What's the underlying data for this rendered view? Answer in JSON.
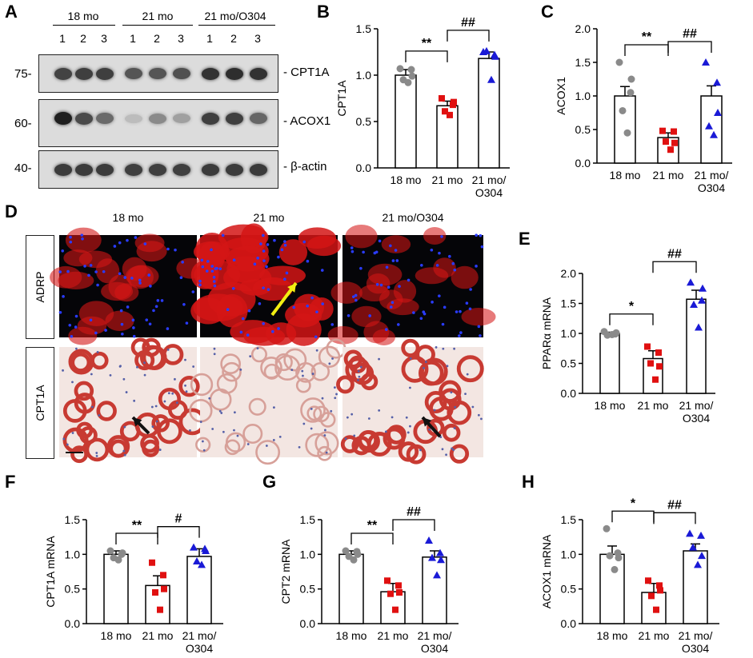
{
  "panel_letters": {
    "a": "A",
    "b": "B",
    "c": "C",
    "d": "D",
    "e": "E",
    "f": "F",
    "g": "G",
    "h": "H"
  },
  "western_blot": {
    "groups": [
      "18 mo",
      "21 mo",
      "21 mo/O304"
    ],
    "lanes": [
      "1",
      "2",
      "3",
      "1",
      "2",
      "3",
      "1",
      "2",
      "3"
    ],
    "rows": [
      {
        "mw": "75-",
        "protein": "- CPT1A",
        "intensities": [
          0.78,
          0.8,
          0.8,
          0.7,
          0.7,
          0.72,
          0.86,
          0.88,
          0.86
        ]
      },
      {
        "mw": "60-",
        "protein": "- ACOX1",
        "intensities": [
          0.95,
          0.75,
          0.6,
          0.22,
          0.45,
          0.35,
          0.8,
          0.8,
          0.62
        ]
      },
      {
        "mw": "40-",
        "protein": "- β-actin",
        "intensities": [
          0.82,
          0.82,
          0.82,
          0.8,
          0.8,
          0.8,
          0.82,
          0.82,
          0.82
        ]
      }
    ]
  },
  "micrographs": {
    "column_titles": [
      "18 mo",
      "21 mo",
      "21 mo/O304"
    ],
    "row_labels": [
      "ADRP",
      "CPT1A"
    ]
  },
  "colors": {
    "group1": "#8a8a8a",
    "group2": "#e01010",
    "group3": "#1a1ad6",
    "arrow_yellow": "#f2ee12",
    "arrow_black": "#111111"
  },
  "chart_data": [
    {
      "id": "B",
      "type": "bar",
      "categories": [
        "18 mo",
        "21 mo",
        "21 mo/\nO304"
      ],
      "values": [
        1.0,
        0.67,
        1.18
      ],
      "errors": [
        0.06,
        0.05,
        0.07
      ],
      "points": [
        [
          1.07,
          1.06,
          0.95,
          0.92,
          0.99
        ],
        [
          0.75,
          0.68,
          0.61,
          0.57,
          0.71
        ],
        [
          1.25,
          1.22,
          1.26,
          0.95,
          1.2
        ]
      ],
      "title": "",
      "xlabel": "",
      "ylabel": "CPT1A",
      "ylim": [
        0,
        1.5
      ],
      "yticks": [
        "0.0",
        "0.5",
        "1.0",
        "1.5"
      ],
      "sig": [
        {
          "from": 0,
          "to": 1,
          "label": "**"
        },
        {
          "from": 1,
          "to": 2,
          "label": "##"
        }
      ]
    },
    {
      "id": "C",
      "type": "bar",
      "categories": [
        "18 mo",
        "21 mo",
        "21 mo/\nO304"
      ],
      "values": [
        1.0,
        0.38,
        1.0
      ],
      "errors": [
        0.14,
        0.07,
        0.15
      ],
      "points": [
        [
          1.5,
          1.05,
          0.78,
          0.45,
          1.25
        ],
        [
          0.48,
          0.47,
          0.32,
          0.2,
          0.3
        ],
        [
          1.5,
          1.2,
          0.55,
          0.42,
          0.75
        ]
      ],
      "title": "",
      "xlabel": "",
      "ylabel": "ACOX1",
      "ylim": [
        0,
        2.0
      ],
      "yticks": [
        "0.0",
        "0.5",
        "1.0",
        "1.5",
        "2.0"
      ],
      "sig": [
        {
          "from": 0,
          "to": 1,
          "label": "**"
        },
        {
          "from": 1,
          "to": 2,
          "label": "##"
        }
      ]
    },
    {
      "id": "E",
      "type": "bar",
      "categories": [
        "18 mo",
        "21 mo",
        "21 mo/\nO304"
      ],
      "values": [
        1.0,
        0.58,
        1.57
      ],
      "errors": [
        0.02,
        0.13,
        0.15
      ],
      "points": [
        [
          1.03,
          0.99,
          0.97,
          0.98,
          1.01
        ],
        [
          0.78,
          0.68,
          0.5,
          0.23,
          0.45
        ],
        [
          1.85,
          1.55,
          1.48,
          1.1,
          1.75
        ]
      ],
      "title": "",
      "xlabel": "",
      "ylabel": "PPARα  mRNA",
      "ylim": [
        0,
        2.0
      ],
      "yticks": [
        "0.0",
        "0.5",
        "1.0",
        "1.5",
        "2.0"
      ],
      "sig": [
        {
          "from": 0,
          "to": 1,
          "label": "*"
        },
        {
          "from": 1,
          "to": 2,
          "label": "##"
        }
      ]
    },
    {
      "id": "F",
      "type": "bar",
      "categories": [
        "18 mo",
        "21 mo",
        "21 mo/\nO304"
      ],
      "values": [
        1.0,
        0.55,
        0.97
      ],
      "errors": [
        0.05,
        0.14,
        0.11
      ],
      "points": [
        [
          1.05,
          1.0,
          0.95,
          0.92,
          1.02
        ],
        [
          0.88,
          0.7,
          0.45,
          0.2,
          0.5
        ],
        [
          1.1,
          1.08,
          0.9,
          0.85,
          1.05
        ]
      ],
      "title": "",
      "xlabel": "",
      "ylabel": "CPT1A  mRNA",
      "ylim": [
        0,
        1.5
      ],
      "yticks": [
        "0.0",
        "0.5",
        "1.0",
        "1.5"
      ],
      "sig": [
        {
          "from": 0,
          "to": 1,
          "label": "**"
        },
        {
          "from": 1,
          "to": 2,
          "label": "#"
        }
      ]
    },
    {
      "id": "G",
      "type": "bar",
      "categories": [
        "18 mo",
        "21 mo",
        "21 mo/\nO304"
      ],
      "values": [
        1.0,
        0.46,
        0.96
      ],
      "errors": [
        0.05,
        0.12,
        0.09
      ],
      "points": [
        [
          1.05,
          1.04,
          0.97,
          0.92,
          1.0
        ],
        [
          0.62,
          0.55,
          0.43,
          0.2,
          0.45
        ],
        [
          1.2,
          1.02,
          0.95,
          0.7,
          0.92
        ]
      ],
      "title": "",
      "xlabel": "",
      "ylabel": "CPT2  mRNA",
      "ylim": [
        0,
        1.5
      ],
      "yticks": [
        "0.0",
        "0.5",
        "1.0",
        "1.5"
      ],
      "sig": [
        {
          "from": 0,
          "to": 1,
          "label": "**"
        },
        {
          "from": 1,
          "to": 2,
          "label": "##"
        }
      ]
    },
    {
      "id": "H",
      "type": "bar",
      "categories": [
        "18 mo",
        "21 mo",
        "21 mo/\nO304"
      ],
      "values": [
        1.0,
        0.45,
        1.05
      ],
      "errors": [
        0.12,
        0.13,
        0.1
      ],
      "points": [
        [
          1.37,
          1.02,
          0.98,
          0.78,
          0.95
        ],
        [
          0.62,
          0.55,
          0.4,
          0.2,
          0.48
        ],
        [
          1.3,
          1.27,
          1.1,
          0.85,
          0.98
        ]
      ],
      "title": "",
      "xlabel": "",
      "ylabel": "ACOX1  mRNA",
      "ylim": [
        0,
        1.5
      ],
      "yticks": [
        "0.0",
        "0.5",
        "1.0",
        "1.5"
      ],
      "sig": [
        {
          "from": 0,
          "to": 1,
          "label": "*"
        },
        {
          "from": 1,
          "to": 2,
          "label": "##"
        }
      ]
    }
  ]
}
